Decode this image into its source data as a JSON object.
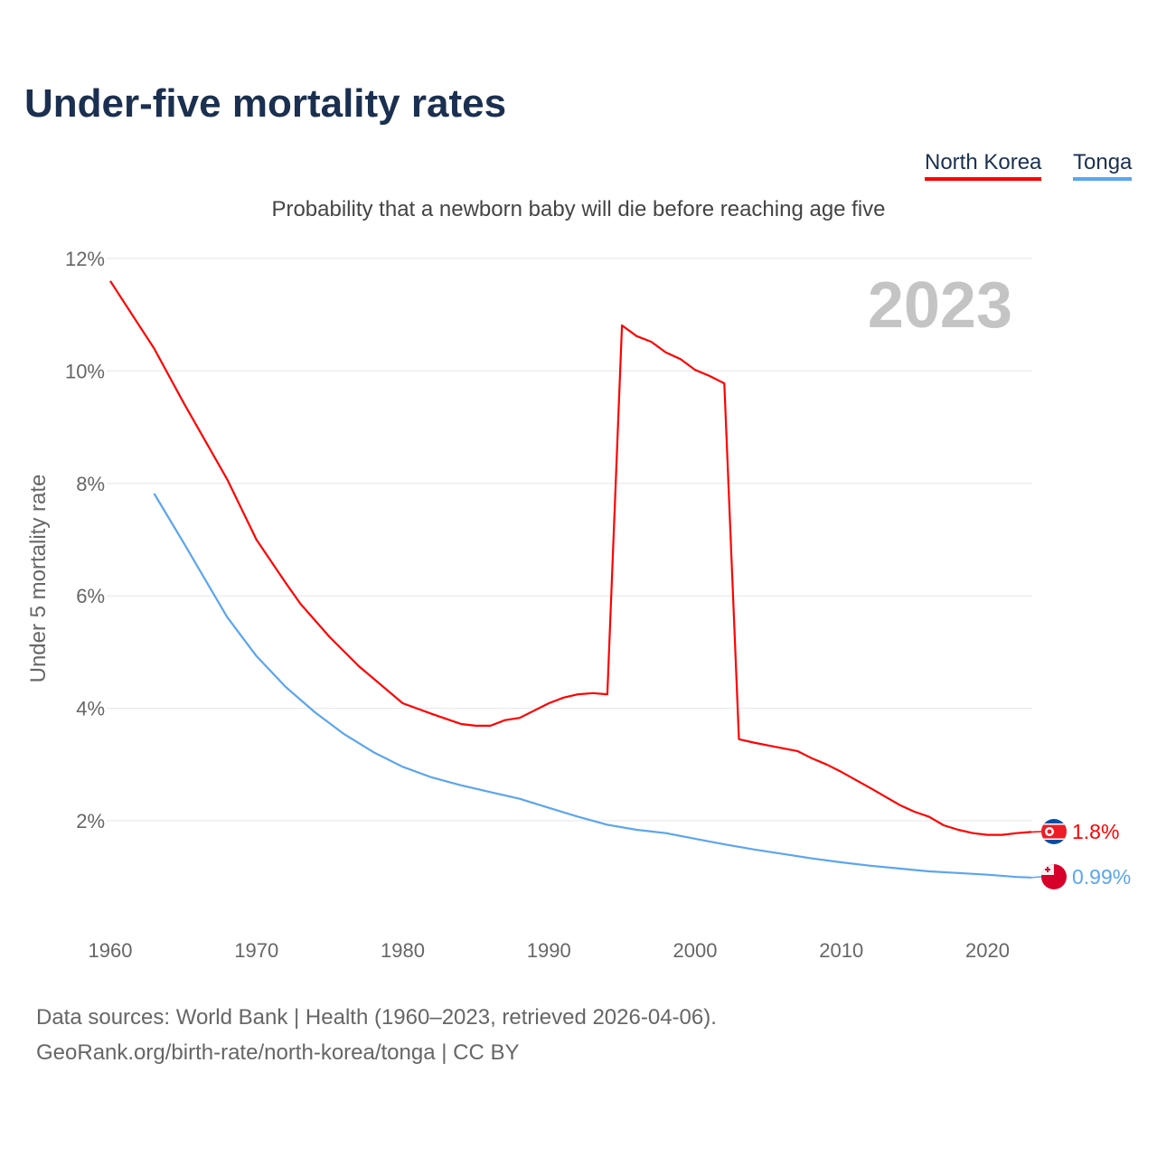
{
  "title": "Under-five mortality rates",
  "subtitle": "Probability that a newborn baby will die before reaching age five",
  "footer": {
    "line1": "Data sources: World Bank | Health (1960–2023, retrieved 2026-04-06).",
    "line2": "GeoRank.org/birth-rate/north-korea/tonga | CC BY"
  },
  "chart_data": {
    "type": "line",
    "title": "Under-five mortality rates",
    "xlabel": "",
    "ylabel": "Under 5 mortality rate",
    "year_label": "2023",
    "xlim": [
      1960,
      2023
    ],
    "ylim": [
      0,
      12
    ],
    "xticks": [
      "1960",
      "1970",
      "1980",
      "1990",
      "2000",
      "2010",
      "2020"
    ],
    "yticks": [
      {
        "v": 2,
        "label": "2%"
      },
      {
        "v": 4,
        "label": "4%"
      },
      {
        "v": 6,
        "label": "6%"
      },
      {
        "v": 8,
        "label": "8%"
      },
      {
        "v": 10,
        "label": "10%"
      },
      {
        "v": 12,
        "label": "12%"
      }
    ],
    "grid": true,
    "legend_position": "top-right",
    "series": [
      {
        "name": "North Korea",
        "color": "#ff0000",
        "end_label": "1.8%",
        "flag": "north-korea-flag",
        "points": [
          [
            1960,
            11.6
          ],
          [
            1963,
            10.4
          ],
          [
            1965,
            9.44
          ],
          [
            1968,
            8.07
          ],
          [
            1970,
            7.0
          ],
          [
            1972,
            6.23
          ],
          [
            1973,
            5.86
          ],
          [
            1975,
            5.27
          ],
          [
            1977,
            4.75
          ],
          [
            1980,
            4.09
          ],
          [
            1982,
            3.9
          ],
          [
            1984,
            3.72
          ],
          [
            1985,
            3.69
          ],
          [
            1986,
            3.69
          ],
          [
            1987,
            3.79
          ],
          [
            1988,
            3.83
          ],
          [
            1990,
            4.09
          ],
          [
            1991,
            4.19
          ],
          [
            1992,
            4.25
          ],
          [
            1993,
            4.27
          ],
          [
            1994,
            4.25
          ],
          [
            1995,
            10.81
          ],
          [
            1996,
            10.62
          ],
          [
            1997,
            10.52
          ],
          [
            1998,
            10.33
          ],
          [
            1999,
            10.21
          ],
          [
            2000,
            10.02
          ],
          [
            2001,
            9.91
          ],
          [
            2002,
            9.78
          ],
          [
            2003,
            3.45
          ],
          [
            2004,
            3.39
          ],
          [
            2005,
            3.34
          ],
          [
            2006,
            3.29
          ],
          [
            2007,
            3.24
          ],
          [
            2008,
            3.11
          ],
          [
            2009,
            3.0
          ],
          [
            2010,
            2.87
          ],
          [
            2012,
            2.58
          ],
          [
            2014,
            2.28
          ],
          [
            2015,
            2.16
          ],
          [
            2016,
            2.07
          ],
          [
            2017,
            1.92
          ],
          [
            2018,
            1.84
          ],
          [
            2019,
            1.78
          ],
          [
            2020,
            1.75
          ],
          [
            2021,
            1.75
          ],
          [
            2022,
            1.78
          ],
          [
            2023,
            1.8
          ]
        ]
      },
      {
        "name": "Tonga",
        "color": "#5ba5ee",
        "end_label": "0.99%",
        "flag": "tonga-flag",
        "points": [
          [
            1963,
            7.82
          ],
          [
            1965,
            6.95
          ],
          [
            1968,
            5.62
          ],
          [
            1970,
            4.93
          ],
          [
            1972,
            4.38
          ],
          [
            1974,
            3.93
          ],
          [
            1976,
            3.54
          ],
          [
            1978,
            3.22
          ],
          [
            1980,
            2.96
          ],
          [
            1982,
            2.77
          ],
          [
            1984,
            2.63
          ],
          [
            1986,
            2.51
          ],
          [
            1988,
            2.39
          ],
          [
            1990,
            2.23
          ],
          [
            1992,
            2.07
          ],
          [
            1994,
            1.93
          ],
          [
            1996,
            1.84
          ],
          [
            1998,
            1.78
          ],
          [
            2000,
            1.68
          ],
          [
            2002,
            1.58
          ],
          [
            2004,
            1.49
          ],
          [
            2006,
            1.41
          ],
          [
            2008,
            1.33
          ],
          [
            2010,
            1.26
          ],
          [
            2012,
            1.2
          ],
          [
            2014,
            1.15
          ],
          [
            2016,
            1.1
          ],
          [
            2018,
            1.07
          ],
          [
            2020,
            1.04
          ],
          [
            2022,
            1.0
          ],
          [
            2023,
            0.99
          ]
        ]
      }
    ]
  }
}
